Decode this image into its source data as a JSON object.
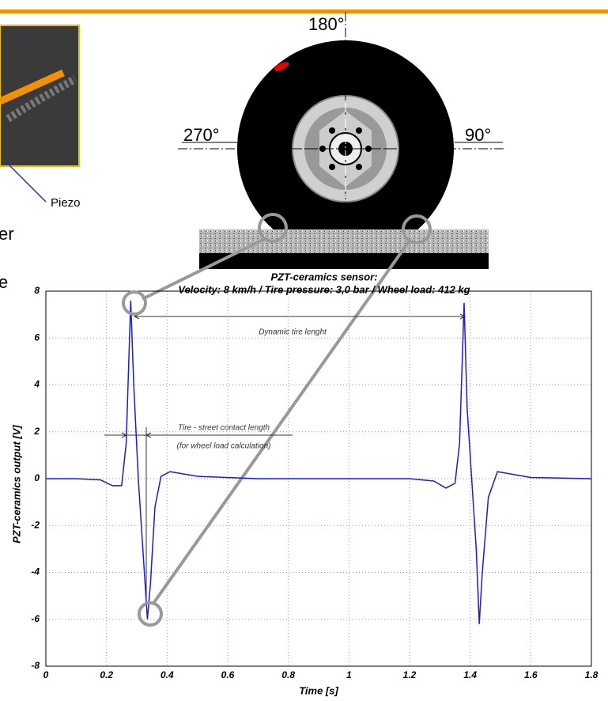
{
  "chart_data": {
    "type": "line",
    "title": "PZT-ceramics sensor:",
    "subtitle": "Velocity: 8 km/h  /  Tire pressure: 3,0 bar  /  Wheel load: 412 kg",
    "xlabel": "Time [s]",
    "ylabel": "PZT-ceramics output [V]",
    "annotations": [
      "Dynamic tire lenght",
      "Tire - street contact length",
      "(for wheel load calculation)"
    ],
    "x": [
      0,
      0.1,
      0.18,
      0.22,
      0.25,
      0.265,
      0.28,
      0.29,
      0.305,
      0.32,
      0.335,
      0.345,
      0.36,
      0.38,
      0.41,
      0.5,
      0.7,
      1.0,
      1.2,
      1.28,
      1.32,
      1.35,
      1.365,
      1.38,
      1.39,
      1.405,
      1.42,
      1.43,
      1.44,
      1.46,
      1.49,
      1.6,
      1.8
    ],
    "values": [
      0,
      0,
      -0.05,
      -0.3,
      -0.3,
      1.5,
      7.6,
      4,
      0,
      -3,
      -6,
      -4.5,
      -1.2,
      0.1,
      0.3,
      0.1,
      0,
      0,
      0,
      -0.1,
      -0.4,
      -0.2,
      1.5,
      7.5,
      3,
      0,
      -3,
      -6.2,
      -4,
      -0.8,
      0.3,
      0.05,
      0
    ],
    "color": "#1a1ae0",
    "xlim": [
      0,
      1.8
    ],
    "xticks": [
      0,
      0.2,
      0.4,
      0.6,
      0.8,
      1,
      1.2,
      1.4,
      1.6,
      1.8
    ],
    "ylim": [
      -8,
      8
    ],
    "yticks": [
      -8,
      -6,
      -4,
      -2,
      0,
      2,
      4,
      6,
      8
    ],
    "grid": true
  },
  "slide": {
    "angle_top": "180°",
    "angle_left": "270°",
    "angle_right": "90°",
    "piezo_label": "Piezo",
    "cut_text_1": "er",
    "cut_text_2": "e"
  }
}
